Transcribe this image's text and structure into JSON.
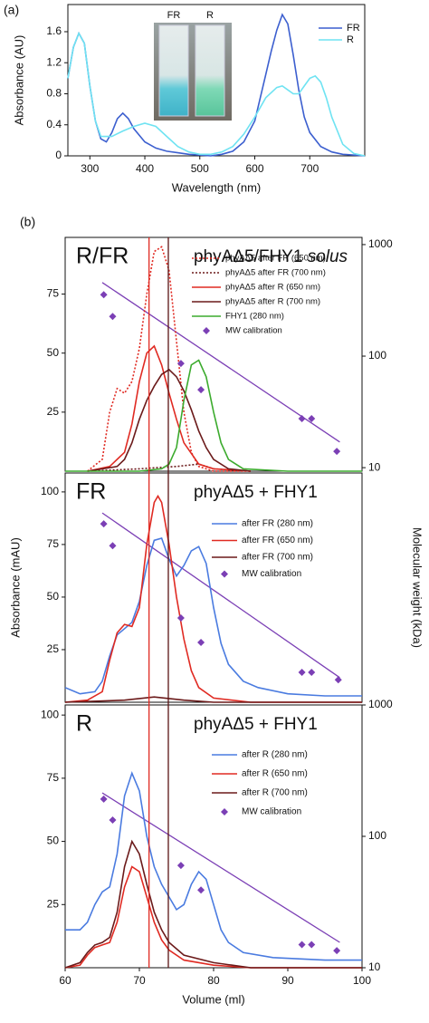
{
  "panel_labels": [
    "(a)",
    "(b)"
  ],
  "vertical_lines": [
    {
      "x": 71.3,
      "color": "#e02a22"
    },
    {
      "x": 73.9,
      "color": "#5a1414"
    }
  ],
  "chart_data": [
    {
      "type": "line",
      "xlabel": "Wavelength (nm)",
      "ylabel": "Absorbance (AU)",
      "xlim": [
        260,
        800
      ],
      "xticks": [
        300,
        400,
        500,
        600,
        700
      ],
      "ylim": [
        0,
        1.95
      ],
      "yticks": [
        0,
        0.4,
        0.8,
        1.2,
        1.6
      ],
      "inset_labels": [
        "FR",
        "R"
      ],
      "series": [
        {
          "name": "FR",
          "color": "#3c5fcf",
          "x": [
            260,
            270,
            280,
            290,
            300,
            310,
            320,
            330,
            340,
            350,
            360,
            370,
            380,
            400,
            420,
            440,
            460,
            480,
            500,
            520,
            540,
            560,
            580,
            600,
            610,
            620,
            630,
            640,
            650,
            660,
            670,
            680,
            690,
            700,
            720,
            740,
            760,
            800
          ],
          "values": [
            1.0,
            1.4,
            1.58,
            1.45,
            0.9,
            0.45,
            0.22,
            0.18,
            0.3,
            0.48,
            0.55,
            0.48,
            0.35,
            0.18,
            0.1,
            0.06,
            0.04,
            0.02,
            0.01,
            0.0,
            0.02,
            0.06,
            0.18,
            0.45,
            0.75,
            1.05,
            1.35,
            1.62,
            1.82,
            1.7,
            1.3,
            0.85,
            0.5,
            0.3,
            0.12,
            0.05,
            0.02,
            0.0
          ]
        },
        {
          "name": "R",
          "color": "#6fe3f2",
          "x": [
            260,
            270,
            280,
            290,
            300,
            310,
            320,
            340,
            360,
            380,
            400,
            420,
            440,
            460,
            480,
            500,
            520,
            540,
            560,
            580,
            600,
            620,
            640,
            650,
            660,
            670,
            680,
            690,
            700,
            710,
            720,
            730,
            740,
            760,
            780,
            800
          ],
          "values": [
            1.0,
            1.4,
            1.58,
            1.45,
            0.9,
            0.45,
            0.25,
            0.25,
            0.32,
            0.38,
            0.42,
            0.38,
            0.25,
            0.12,
            0.05,
            0.02,
            0.02,
            0.05,
            0.12,
            0.28,
            0.5,
            0.75,
            0.88,
            0.9,
            0.85,
            0.8,
            0.8,
            0.9,
            1.0,
            1.03,
            0.95,
            0.75,
            0.5,
            0.15,
            0.03,
            0.0
          ]
        }
      ]
    },
    {
      "type": "line",
      "label": "R/FR",
      "heading": "phyAΔ5/FHY1",
      "heading_italic": "solus",
      "xlim": [
        60,
        100
      ],
      "ylim": [
        0,
        99
      ],
      "yticks": [
        25,
        50,
        75
      ],
      "y2lim": [
        9.3,
        1160
      ],
      "y2ticks": [
        10,
        100,
        1000
      ],
      "y2log": true,
      "series": [
        {
          "name": "phyAΔ5 after FR (650 nm)",
          "color": "#e02a22",
          "dash": "dot",
          "x": [
            63,
            65,
            66,
            67,
            68,
            69,
            70,
            71,
            72,
            73,
            74,
            75,
            76,
            77,
            78,
            80,
            85
          ],
          "values": [
            0,
            5,
            25,
            35,
            33,
            38,
            52,
            75,
            93,
            95,
            85,
            55,
            25,
            8,
            2,
            0,
            0
          ]
        },
        {
          "name": "phyAΔ5 after FR (700 nm)",
          "color": "#6b1a1a",
          "dash": "dot",
          "x": [
            63,
            70,
            75,
            78,
            80,
            85
          ],
          "values": [
            0,
            1,
            2,
            3,
            1,
            0
          ]
        },
        {
          "name": "phyAΔ5 after  R (650 nm)",
          "color": "#e02a22",
          "x": [
            63,
            66,
            68,
            69,
            70,
            71,
            72,
            73,
            74,
            75,
            76,
            78,
            80,
            85
          ],
          "values": [
            0,
            2,
            8,
            20,
            38,
            50,
            53,
            45,
            33,
            22,
            12,
            3,
            1,
            0
          ]
        },
        {
          "name": "phyAΔ5 after  R (700 nm)",
          "color": "#6b1a1a",
          "x": [
            63,
            67,
            68,
            69,
            70,
            71,
            72,
            73,
            74,
            75,
            76,
            77,
            78,
            79,
            80,
            82,
            85
          ],
          "values": [
            0,
            2,
            5,
            12,
            22,
            30,
            36,
            41,
            43,
            40,
            34,
            26,
            17,
            10,
            5,
            1,
            0
          ]
        },
        {
          "name": "FHY1       (280 nm)",
          "color": "#3cab2e",
          "x": [
            60,
            70,
            73,
            74,
            75,
            76,
            77,
            78,
            79,
            80,
            81,
            82,
            84,
            90,
            100
          ],
          "values": [
            0,
            0,
            1,
            3,
            10,
            30,
            45,
            47,
            40,
            25,
            12,
            5,
            1,
            0,
            0
          ]
        },
        {
          "name": "MW calibration",
          "color": "#7b3fb5",
          "marker": "diamond",
          "axis": "y2",
          "x": [
            65.2,
            66.4,
            75.6,
            78.3,
            91.9,
            93.2,
            96.6
          ],
          "values": [
            355,
            227,
            86,
            50,
            27.5,
            27.5,
            14
          ]
        }
      ],
      "fit": {
        "color": "#7b3fb5",
        "x": [
          65,
          97
        ],
        "values": [
          457,
          17
        ]
      }
    },
    {
      "type": "line",
      "label": "FR",
      "heading": "phyAΔ5 + FHY1",
      "ylabel": "Absorbance (mAU)",
      "y2label": "Molecular weight (kDa)",
      "xlim": [
        60,
        100
      ],
      "ylim": [
        0,
        109
      ],
      "yticks": [
        25,
        50,
        75,
        100
      ],
      "y2lim": [
        8,
        900
      ],
      "y2log": true,
      "series": [
        {
          "name": "after FR (280 nm)",
          "color": "#4a7be0",
          "x": [
            60,
            62,
            64,
            65,
            66,
            67,
            68,
            69,
            70,
            71,
            72,
            73,
            74,
            75,
            76,
            77,
            78,
            79,
            80,
            81,
            82,
            84,
            86,
            90,
            95,
            100
          ],
          "values": [
            7,
            4,
            5,
            10,
            22,
            32,
            35,
            38,
            48,
            65,
            77,
            78,
            68,
            60,
            65,
            72,
            74,
            66,
            45,
            28,
            18,
            10,
            7,
            4,
            3,
            3
          ]
        },
        {
          "name": "after FR (650 nm)",
          "color": "#e02a22",
          "x": [
            60,
            63,
            65,
            66,
            67,
            68,
            69,
            70,
            71,
            72,
            72.5,
            73,
            74,
            75,
            76,
            77,
            78,
            80,
            85,
            100
          ],
          "values": [
            0,
            1,
            5,
            20,
            33,
            37,
            36,
            45,
            75,
            95,
            98,
            95,
            75,
            50,
            30,
            15,
            7,
            2,
            0,
            0
          ]
        },
        {
          "name": "after FR (700 nm)",
          "color": "#6b1a1a",
          "x": [
            60,
            68,
            72,
            76,
            80,
            100
          ],
          "values": [
            0,
            1,
            2.5,
            1,
            0,
            0
          ]
        },
        {
          "name": "MW calibration",
          "color": "#7b3fb5",
          "marker": "diamond",
          "axis": "y2",
          "x": [
            65.2,
            66.4,
            75.6,
            78.3,
            91.9,
            93.2,
            96.8
          ],
          "values": [
            316,
            201,
            45.4,
            27.4,
            14.8,
            14.8,
            12.7
          ]
        }
      ],
      "fit": {
        "color": "#7b3fb5",
        "x": [
          65,
          97
        ],
        "values": [
          395,
          13.3
        ]
      }
    },
    {
      "type": "line",
      "label": "R",
      "heading": "phyAΔ5 + FHY1",
      "xlabel": "Volume (ml)",
      "xlim": [
        60,
        100
      ],
      "xticks": [
        60,
        70,
        80,
        90,
        100
      ],
      "ylim": [
        0,
        104
      ],
      "yticks": [
        25,
        50,
        75,
        100
      ],
      "y2lim": [
        10,
        1000
      ],
      "y2ticks": [
        10,
        100,
        1000
      ],
      "y2log": true,
      "series": [
        {
          "name": "after R (280 nm)",
          "color": "#4a7be0",
          "x": [
            60,
            62,
            63,
            64,
            65,
            66,
            67,
            68,
            69,
            70,
            71,
            72,
            73,
            74,
            75,
            76,
            77,
            78,
            79,
            80,
            81,
            82,
            84,
            88,
            95,
            100
          ],
          "values": [
            15,
            15,
            18,
            25,
            30,
            32,
            45,
            68,
            77,
            70,
            52,
            40,
            33,
            28,
            23,
            25,
            33,
            38,
            35,
            25,
            15,
            10,
            6,
            4,
            3,
            3
          ]
        },
        {
          "name": "after R (650 nm)",
          "color": "#e02a22",
          "x": [
            60,
            62,
            63,
            64,
            65,
            66,
            67,
            68,
            69,
            70,
            71,
            72,
            73,
            74,
            76,
            80,
            85,
            100
          ],
          "values": [
            0,
            1,
            5,
            8,
            9,
            10,
            18,
            32,
            40,
            38,
            28,
            18,
            11,
            7,
            3,
            1,
            0,
            0
          ]
        },
        {
          "name": "after R (700 nm)",
          "color": "#6b1a1a",
          "x": [
            60,
            62,
            63,
            64,
            65,
            66,
            67,
            68,
            69,
            70,
            71,
            72,
            73,
            74,
            76,
            80,
            85,
            100
          ],
          "values": [
            0,
            2,
            6,
            9,
            10,
            12,
            22,
            40,
            50,
            45,
            33,
            22,
            15,
            10,
            5,
            2,
            0,
            0
          ]
        },
        {
          "name": "MW calibration",
          "color": "#7b3fb5",
          "marker": "diamond",
          "axis": "y2",
          "x": [
            65.2,
            66.4,
            75.6,
            78.3,
            91.9,
            93.2,
            96.6
          ],
          "values": [
            192,
            133,
            60,
            39,
            15,
            15,
            13.5
          ]
        }
      ],
      "fit": {
        "color": "#7b3fb5",
        "x": [
          65,
          97
        ],
        "values": [
          214,
          15.6
        ]
      }
    }
  ]
}
